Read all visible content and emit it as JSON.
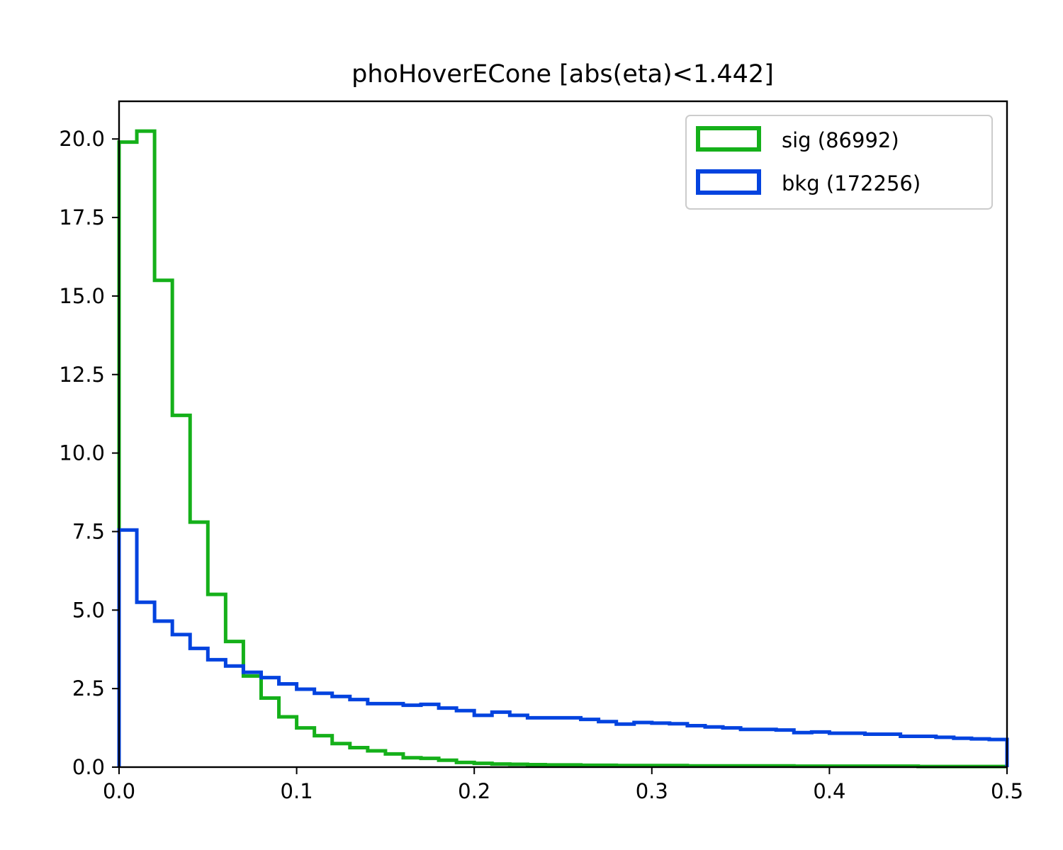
{
  "chart_data": {
    "type": "histogram",
    "title": "phoHoverECone [abs(eta)<1.442]",
    "xlabel": "",
    "ylabel": "",
    "xlim": [
      0.0,
      0.5
    ],
    "ylim": [
      0.0,
      21.2
    ],
    "xticks": [
      "0.0",
      "0.1",
      "0.2",
      "0.3",
      "0.4",
      "0.5"
    ],
    "yticks": [
      "0.0",
      "2.5",
      "5.0",
      "7.5",
      "10.0",
      "12.5",
      "15.0",
      "17.5",
      "20.0"
    ],
    "grid": false,
    "legend_position": "top-right",
    "bin_edges_start": 0.0,
    "bin_width": 0.01,
    "series": [
      {
        "name": "sig (86992)",
        "color": "#15b01a",
        "values": [
          19.9,
          20.25,
          15.5,
          11.2,
          7.8,
          5.5,
          4.0,
          2.9,
          2.2,
          1.6,
          1.25,
          1.0,
          0.75,
          0.62,
          0.52,
          0.42,
          0.3,
          0.28,
          0.22,
          0.15,
          0.12,
          0.1,
          0.09,
          0.08,
          0.07,
          0.07,
          0.06,
          0.06,
          0.05,
          0.05,
          0.05,
          0.05,
          0.04,
          0.04,
          0.04,
          0.04,
          0.04,
          0.04,
          0.03,
          0.03,
          0.03,
          0.03,
          0.03,
          0.03,
          0.03,
          0.02,
          0.02,
          0.02,
          0.02,
          0.02
        ]
      },
      {
        "name": "bkg (172256)",
        "color": "#0343df",
        "values": [
          7.55,
          5.25,
          4.65,
          4.22,
          3.78,
          3.42,
          3.22,
          3.02,
          2.85,
          2.65,
          2.48,
          2.35,
          2.25,
          2.15,
          2.02,
          2.02,
          1.97,
          2.0,
          1.88,
          1.8,
          1.65,
          1.75,
          1.65,
          1.57,
          1.57,
          1.57,
          1.52,
          1.45,
          1.37,
          1.42,
          1.4,
          1.38,
          1.32,
          1.28,
          1.25,
          1.2,
          1.2,
          1.18,
          1.1,
          1.12,
          1.08,
          1.08,
          1.05,
          1.05,
          0.98,
          0.98,
          0.95,
          0.92,
          0.9,
          0.88
        ]
      }
    ]
  }
}
